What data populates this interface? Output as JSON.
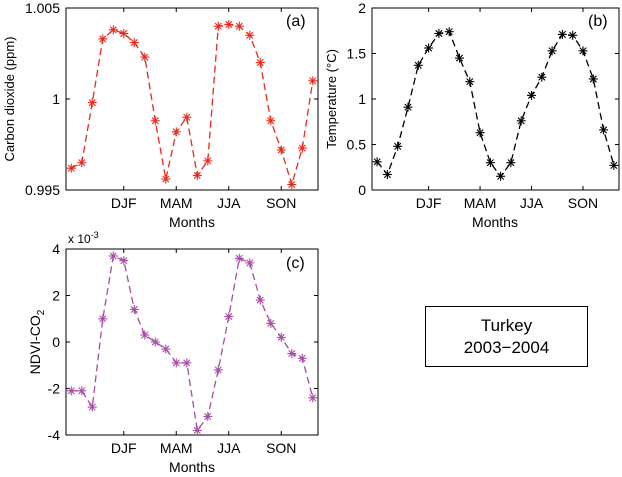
{
  "chart_data": [
    {
      "type": "line",
      "panel_label": "(a)",
      "xlabel": "Months",
      "ylabel": "Carbon dioxide (ppm)",
      "ylim": [
        0.995,
        1.005
      ],
      "yticks": [
        "0.995",
        "1",
        "1.005"
      ],
      "ytick_values": [
        0.995,
        1,
        1.005
      ],
      "xlim": [
        -0.5,
        23.5
      ],
      "xticks": [
        "DJF",
        "MAM",
        "JJA",
        "SON"
      ],
      "xtick_positions": [
        5,
        10,
        15,
        20
      ],
      "color": "#e8291c",
      "marker": "*",
      "line_style": "dashed",
      "x": [
        0,
        1,
        2,
        3,
        4,
        5,
        6,
        7,
        8,
        9,
        10,
        11,
        12,
        13,
        14,
        15,
        16,
        17,
        18,
        19,
        20,
        21,
        22,
        23
      ],
      "values": [
        0.9962,
        0.9965,
        0.9998,
        1.0033,
        1.0038,
        1.0036,
        1.0031,
        1.0023,
        0.9988,
        0.9956,
        0.9982,
        0.999,
        0.9958,
        0.9966,
        1.004,
        1.0041,
        1.004,
        1.0035,
        1.002,
        0.9988,
        0.9972,
        0.9953,
        0.9973,
        1.001
      ]
    },
    {
      "type": "line",
      "panel_label": "(b)",
      "xlabel": "Months",
      "ylabel": "Temperature (°C)",
      "ylim": [
        0,
        2
      ],
      "yticks": [
        "0",
        "0.5",
        "1",
        "1.5",
        "2"
      ],
      "ytick_values": [
        0,
        0.5,
        1,
        1.5,
        2
      ],
      "xlim": [
        -0.5,
        23.5
      ],
      "xticks": [
        "DJF",
        "MAM",
        "JJA",
        "SON"
      ],
      "xtick_positions": [
        5,
        10,
        15,
        20
      ],
      "color": "#000000",
      "marker": "*",
      "line_style": "dashed",
      "x": [
        0,
        1,
        2,
        3,
        4,
        5,
        6,
        7,
        8,
        9,
        10,
        11,
        12,
        13,
        14,
        15,
        16,
        17,
        18,
        19,
        20,
        21,
        22,
        23
      ],
      "values": [
        0.31,
        0.17,
        0.48,
        0.91,
        1.37,
        1.56,
        1.72,
        1.74,
        1.45,
        1.19,
        0.63,
        0.3,
        0.15,
        0.3,
        0.76,
        1.04,
        1.24,
        1.53,
        1.71,
        1.7,
        1.53,
        1.22,
        0.66,
        0.27
      ]
    },
    {
      "type": "line",
      "panel_label": "(c)",
      "xlabel": "Months",
      "ylabel_main": "NDVI-CO",
      "ylabel_sub": "2",
      "scale_label_main": "x 10",
      "scale_label_exp": "-3",
      "ylim": [
        -4,
        4
      ],
      "yticks": [
        "-4",
        "-2",
        "0",
        "2",
        "4"
      ],
      "ytick_values": [
        -4,
        -2,
        0,
        2,
        4
      ],
      "xlim": [
        -0.5,
        23.5
      ],
      "xticks": [
        "DJF",
        "MAM",
        "JJA",
        "SON"
      ],
      "xtick_positions": [
        5,
        10,
        15,
        20
      ],
      "color": "#a64ca6",
      "marker": "*",
      "line_style": "dashed",
      "x": [
        0,
        1,
        2,
        3,
        4,
        5,
        6,
        7,
        8,
        9,
        10,
        11,
        12,
        13,
        14,
        15,
        16,
        17,
        18,
        19,
        20,
        21,
        22,
        23
      ],
      "values": [
        -2.1,
        -2.1,
        -2.8,
        1.0,
        3.7,
        3.5,
        1.4,
        0.3,
        0.0,
        -0.3,
        -0.9,
        -0.9,
        -3.8,
        -3.2,
        -1.2,
        1.1,
        3.6,
        3.4,
        1.8,
        0.8,
        0.2,
        -0.5,
        -0.7,
        -2.4
      ]
    }
  ],
  "legend_box": {
    "line1": "Turkey",
    "line2": "2003−2004"
  }
}
